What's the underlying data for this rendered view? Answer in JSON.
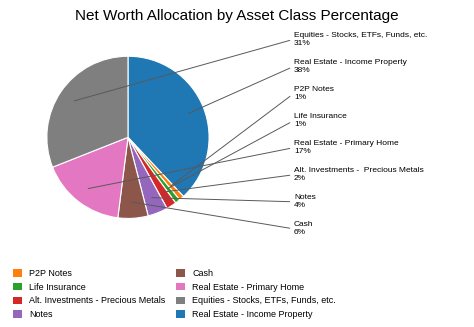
{
  "chart_data": {
    "type": "pie",
    "title": "Net Worth Allocation by Asset Class Percentage",
    "categories": [
      "Real Estate - Income Property",
      "P2P Notes",
      "Life Insurance",
      "Alt. Investments - Precious Metals",
      "Notes",
      "Cash",
      "Real Estate - Primary Home",
      "Equities - Stocks, ETFs, Funds, etc."
    ],
    "values": [
      38,
      1,
      1,
      2,
      4,
      6,
      17,
      31
    ],
    "annotations": [
      "Real Estate - Income Property\n38%",
      "P2P Notes\n1%",
      "Life Insurance\n1%",
      "Alt. Investments -  Precious Metals\n2%",
      "Notes\n4%",
      "Cash\n6%",
      "Real Estate - Primary Home\n17%",
      "Equities - Stocks, ETFs, Funds, etc.\n31%"
    ],
    "legend_entries": [
      "P2P Notes",
      "Life Insurance",
      "Alt. Investments - Precious Metals",
      "Notes",
      "Cash",
      "Real Estate - Primary Home",
      "Equities - Stocks, ETFs, Funds, etc.",
      "Real Estate - Income Property"
    ],
    "legend": "lower left"
  }
}
